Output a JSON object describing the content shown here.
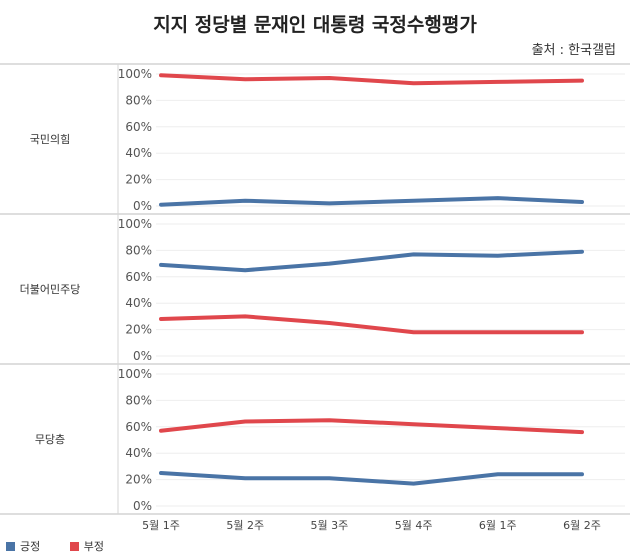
{
  "title": "지지 정당별 문재인 대통령 국정수행평가",
  "source": "출처 : 한국갤럽",
  "legend": [
    {
      "name": "긍정",
      "color": "#4a74a6"
    },
    {
      "name": "부정",
      "color": "#e0474c"
    }
  ],
  "chart_data": {
    "type": "line",
    "categories": [
      "5월 1주",
      "5월 2주",
      "5월 3주",
      "5월 4주",
      "6월 1주",
      "6월 2주"
    ],
    "panels": [
      {
        "label": "국민의힘",
        "yticks": [
          "0%",
          "20%",
          "40%",
          "60%",
          "80%",
          "100%"
        ],
        "ylim": [
          0,
          100
        ],
        "series": [
          {
            "name": "긍정",
            "color": "#4a74a6",
            "values": [
              1,
              4,
              2,
              4,
              6,
              3
            ]
          },
          {
            "name": "부정",
            "color": "#e0474c",
            "values": [
              99,
              96,
              97,
              93,
              94,
              95
            ]
          }
        ]
      },
      {
        "label": "더불어민주당",
        "yticks": [
          "0%",
          "20%",
          "40%",
          "60%",
          "80%",
          "100%"
        ],
        "ylim": [
          0,
          100
        ],
        "series": [
          {
            "name": "긍정",
            "color": "#4a74a6",
            "values": [
              69,
              65,
              70,
              77,
              76,
              79
            ]
          },
          {
            "name": "부정",
            "color": "#e0474c",
            "values": [
              28,
              30,
              25,
              18,
              18,
              18
            ]
          }
        ]
      },
      {
        "label": "무당층",
        "yticks": [
          "0%",
          "20%",
          "40%",
          "60%",
          "80%",
          "100%"
        ],
        "ylim": [
          0,
          100
        ],
        "series": [
          {
            "name": "긍정",
            "color": "#4a74a6",
            "values": [
              25,
              21,
              21,
              17,
              24,
              24
            ]
          },
          {
            "name": "부정",
            "color": "#e0474c",
            "values": [
              57,
              64,
              65,
              62,
              59,
              56
            ]
          }
        ]
      }
    ]
  }
}
